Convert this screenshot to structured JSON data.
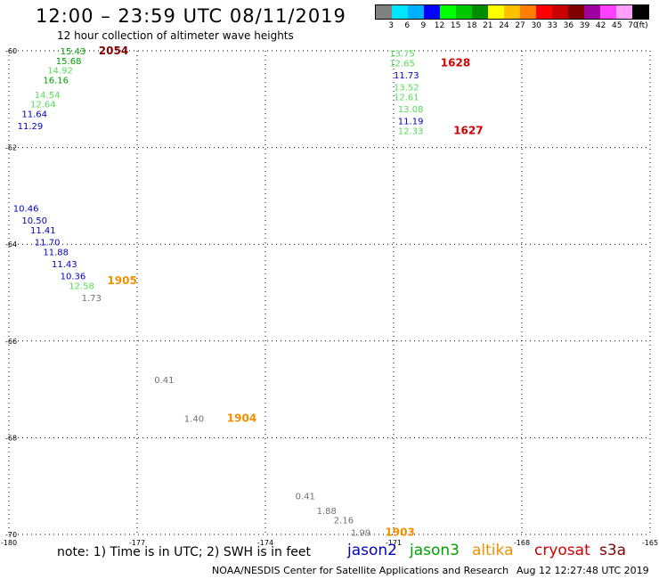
{
  "header": {
    "title": "12:00 – 23:59 UTC 08/11/2019",
    "subtitle": "12 hour collection of altimeter wave heights"
  },
  "color_scale": {
    "colors": [
      "#808080",
      "#00e5ff",
      "#00b0ff",
      "#0000ff",
      "#00ff00",
      "#00c800",
      "#008c00",
      "#ffff00",
      "#ffc000",
      "#ff8000",
      "#ff0000",
      "#c80000",
      "#800000",
      "#a000a0",
      "#ff40ff",
      "#ffa0ff",
      "#000000"
    ],
    "labels": [
      "3",
      "6",
      "9",
      "12",
      "15",
      "18",
      "21",
      "24",
      "27",
      "30",
      "33",
      "36",
      "39",
      "42",
      "45",
      "70",
      "(ft)"
    ]
  },
  "map": {
    "lon_range": [
      -180,
      -165
    ],
    "lat_range": [
      -70,
      -60
    ],
    "lon_ticks": [
      "-180",
      "-177",
      "-174",
      "-171",
      "-168",
      "-165"
    ],
    "lat_ticks": [
      "-60",
      "-62",
      "-64",
      "-66",
      "-68",
      "-70"
    ]
  },
  "satellites": {
    "jason2": "#0000c0",
    "jason3": "#00a000",
    "jason3_light": "#55dd55",
    "altika": "#f09000",
    "cryosat": "#d00000",
    "s3a": "#800000",
    "other": "#707070"
  },
  "observations": [
    {
      "text": "15.43",
      "lon": -178.8,
      "lat": -60.0,
      "sat": "jason3"
    },
    {
      "text": "15.68",
      "lon": -178.9,
      "lat": -60.2,
      "sat": "jason3"
    },
    {
      "text": "14.92",
      "lon": -179.1,
      "lat": -60.4,
      "sat": "jason3_light"
    },
    {
      "text": "16.16",
      "lon": -179.2,
      "lat": -60.6,
      "sat": "jason3"
    },
    {
      "text": "14.54",
      "lon": -179.4,
      "lat": -60.9,
      "sat": "jason3_light"
    },
    {
      "text": "12.64",
      "lon": -179.5,
      "lat": -61.1,
      "sat": "jason3_light"
    },
    {
      "text": "11.64",
      "lon": -179.7,
      "lat": -61.3,
      "sat": "jason2"
    },
    {
      "text": "11.29",
      "lon": -179.8,
      "lat": -61.55,
      "sat": "jason2"
    },
    {
      "text": "13.75",
      "lon": -171.1,
      "lat": -60.05,
      "sat": "jason3_light"
    },
    {
      "text": "12.65",
      "lon": -171.1,
      "lat": -60.25,
      "sat": "jason3_light"
    },
    {
      "text": "11.73",
      "lon": -171.0,
      "lat": -60.5,
      "sat": "jason2"
    },
    {
      "text": "13.52",
      "lon": -171.0,
      "lat": -60.75,
      "sat": "jason3_light"
    },
    {
      "text": "12.61",
      "lon": -171.0,
      "lat": -60.95,
      "sat": "jason3_light"
    },
    {
      "text": "13.08",
      "lon": -170.9,
      "lat": -61.2,
      "sat": "jason3_light"
    },
    {
      "text": "11.19",
      "lon": -170.9,
      "lat": -61.45,
      "sat": "jason2"
    },
    {
      "text": "12.33",
      "lon": -170.9,
      "lat": -61.65,
      "sat": "jason3_light"
    },
    {
      "text": "10.46",
      "lon": -179.9,
      "lat": -63.25,
      "sat": "jason2"
    },
    {
      "text": "10.50",
      "lon": -179.7,
      "lat": -63.5,
      "sat": "jason2"
    },
    {
      "text": "11.41",
      "lon": -179.5,
      "lat": -63.7,
      "sat": "jason2"
    },
    {
      "text": "11.70",
      "lon": -179.4,
      "lat": -63.95,
      "sat": "jason2"
    },
    {
      "text": "11.88",
      "lon": -179.2,
      "lat": -64.15,
      "sat": "jason2"
    },
    {
      "text": "11.43",
      "lon": -179.0,
      "lat": -64.4,
      "sat": "jason2"
    },
    {
      "text": "10.36",
      "lon": -178.8,
      "lat": -64.65,
      "sat": "jason2"
    },
    {
      "text": "12.58",
      "lon": -178.6,
      "lat": -64.85,
      "sat": "jason3_light"
    },
    {
      "text": "1.73",
      "lon": -178.3,
      "lat": -65.1,
      "sat": "other"
    },
    {
      "text": "0.41",
      "lon": -176.6,
      "lat": -66.8,
      "sat": "other"
    },
    {
      "text": "1.40",
      "lon": -175.9,
      "lat": -67.6,
      "sat": "other"
    },
    {
      "text": "0.41",
      "lon": -173.3,
      "lat": -69.2,
      "sat": "other"
    },
    {
      "text": "1.88",
      "lon": -172.8,
      "lat": -69.5,
      "sat": "other"
    },
    {
      "text": "2.16",
      "lon": -172.4,
      "lat": -69.7,
      "sat": "other"
    },
    {
      "text": "1.99",
      "lon": -172.0,
      "lat": -69.95,
      "sat": "other"
    }
  ],
  "time_labels": [
    {
      "text": "2054",
      "lon": -177.9,
      "lat": -60.0,
      "sat": "s3a"
    },
    {
      "text": "1628",
      "lon": -169.9,
      "lat": -60.25,
      "sat": "cryosat"
    },
    {
      "text": "1627",
      "lon": -169.6,
      "lat": -61.65,
      "sat": "cryosat"
    },
    {
      "text": "1905",
      "lon": -177.7,
      "lat": -64.75,
      "sat": "altika"
    },
    {
      "text": "1904",
      "lon": -174.9,
      "lat": -67.6,
      "sat": "altika"
    },
    {
      "text": "1903",
      "lon": -171.2,
      "lat": -69.95,
      "sat": "altika"
    }
  ],
  "footer": {
    "note": "note: 1) Time is in UTC; 2) SWH is in feet",
    "legend": [
      "jason2",
      "jason3",
      "altika",
      "cryosat",
      "s3a"
    ],
    "credit": "NOAA/NESDIS Center for Satellite Applications and Research",
    "timestamp": "Aug 12 12:27:48 UTC 2019"
  }
}
